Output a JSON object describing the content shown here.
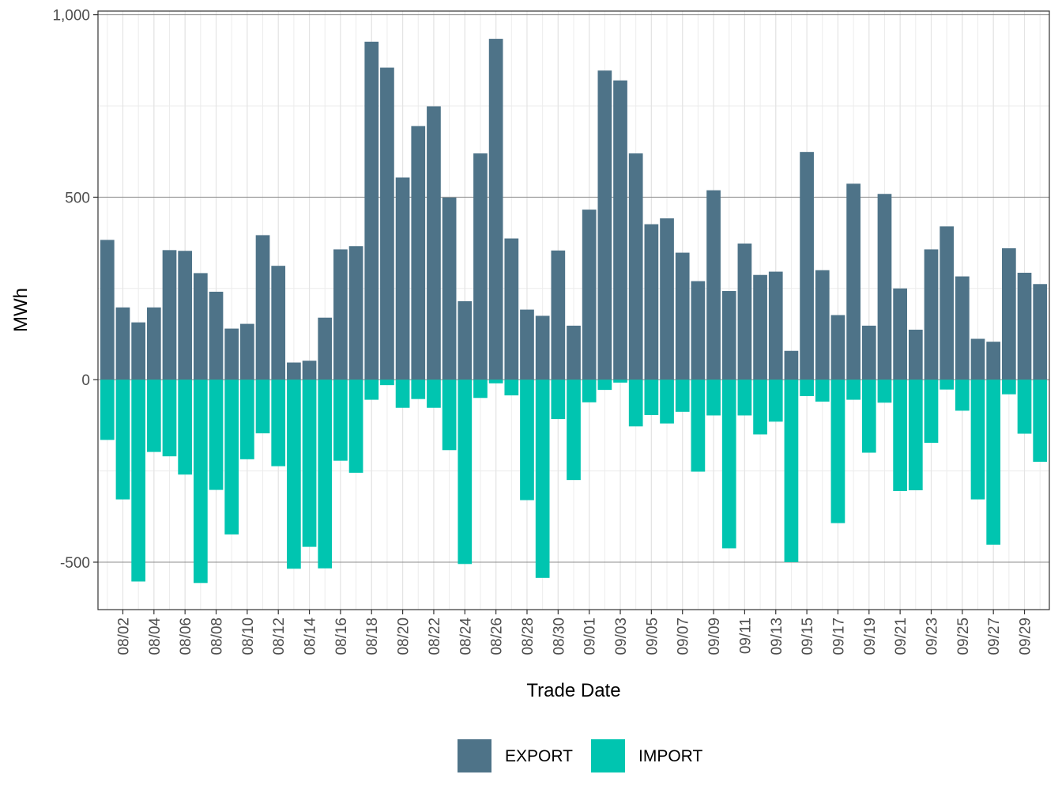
{
  "chart_data": {
    "type": "bar",
    "stacked": "diverging",
    "xlabel": "Trade Date",
    "ylabel": "MWh",
    "ylim": [
      -630,
      1010
    ],
    "yticks": [
      {
        "value": 1000,
        "label": "1,000"
      },
      {
        "value": 500,
        "label": "500"
      },
      {
        "value": 0,
        "label": "0"
      },
      {
        "value": -500,
        "label": "-500"
      }
    ],
    "ygrid_minor": [
      750,
      250,
      -250
    ],
    "dates": [
      "08/01",
      "08/02",
      "08/03",
      "08/04",
      "08/05",
      "08/06",
      "08/07",
      "08/08",
      "08/09",
      "08/10",
      "08/11",
      "08/12",
      "08/13",
      "08/14",
      "08/15",
      "08/16",
      "08/17",
      "08/18",
      "08/19",
      "08/20",
      "08/21",
      "08/22",
      "08/23",
      "08/24",
      "08/25",
      "08/26",
      "08/27",
      "08/28",
      "08/29",
      "08/30",
      "08/31",
      "09/01",
      "09/02",
      "09/03",
      "09/04",
      "09/05",
      "09/06",
      "09/07",
      "09/08",
      "09/09",
      "09/10",
      "09/11",
      "09/12",
      "09/13",
      "09/14",
      "09/15",
      "09/16",
      "09/17",
      "09/18",
      "09/19",
      "09/20",
      "09/21",
      "09/22",
      "09/23",
      "09/24",
      "09/25",
      "09/26",
      "09/27",
      "09/28",
      "09/29",
      "09/30"
    ],
    "tick_labels": [
      "08/02",
      "08/04",
      "08/06",
      "08/08",
      "08/10",
      "08/12",
      "08/14",
      "08/16",
      "08/18",
      "08/20",
      "08/22",
      "08/24",
      "08/26",
      "08/28",
      "08/30",
      "09/01",
      "09/03",
      "09/05",
      "09/07",
      "09/09",
      "09/11",
      "09/13",
      "09/15",
      "09/17",
      "09/19",
      "09/21",
      "09/23",
      "09/25",
      "09/27",
      "09/29"
    ],
    "series": [
      {
        "name": "EXPORT",
        "color": "#4e7388",
        "values": [
          383,
          198,
          157,
          198,
          355,
          353,
          292,
          241,
          140,
          153,
          396,
          312,
          47,
          52,
          170,
          357,
          366,
          926,
          855,
          554,
          695,
          749,
          499,
          215,
          620,
          934,
          387,
          192,
          175,
          354,
          148,
          466,
          847,
          820,
          620,
          426,
          442,
          348,
          270,
          519,
          243,
          373,
          287,
          296,
          79,
          624,
          300,
          177,
          537,
          148,
          509,
          250,
          137,
          357,
          420,
          283,
          112,
          104,
          360,
          293,
          262
        ]
      },
      {
        "name": "IMPORT",
        "color": "#00c5b0",
        "values": [
          -165,
          -328,
          -553,
          -198,
          -210,
          -260,
          -557,
          -302,
          -424,
          -218,
          -147,
          -237,
          -518,
          -458,
          -517,
          -222,
          -255,
          -55,
          -15,
          -77,
          -53,
          -77,
          -193,
          -505,
          -50,
          -10,
          -43,
          -330,
          -543,
          -108,
          -275,
          -62,
          -28,
          -8,
          -128,
          -97,
          -120,
          -88,
          -252,
          -98,
          -462,
          -98,
          -150,
          -115,
          -500,
          -45,
          -60,
          -393,
          -55,
          -200,
          -63,
          -305,
          -303,
          -173,
          -27,
          -85,
          -328,
          -452,
          -40,
          -148,
          -225
        ]
      }
    ],
    "legend": {
      "position": "bottom",
      "labels": [
        "EXPORT",
        "IMPORT"
      ]
    }
  }
}
